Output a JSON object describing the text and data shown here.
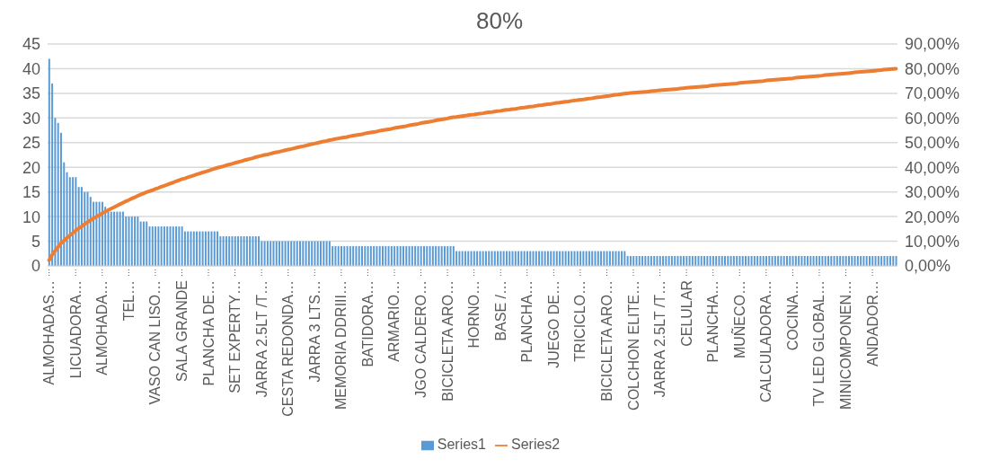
{
  "chart_data": {
    "type": "bar",
    "title": "80%",
    "categories": [
      "ALMOHADAS…",
      null,
      null,
      null,
      null,
      null,
      null,
      null,
      null,
      "LICUADORA…",
      null,
      null,
      null,
      null,
      null,
      null,
      null,
      null,
      "ALMOHADA…",
      null,
      null,
      null,
      null,
      null,
      null,
      null,
      null,
      "TEL…",
      null,
      null,
      null,
      null,
      null,
      null,
      null,
      null,
      "VASO CAN LISO…",
      null,
      null,
      null,
      null,
      null,
      null,
      null,
      null,
      "SALA GRANDE",
      null,
      null,
      null,
      null,
      null,
      null,
      null,
      null,
      "PLANCHA DE…",
      null,
      null,
      null,
      null,
      null,
      null,
      null,
      null,
      "SET EXPERTY…",
      null,
      null,
      null,
      null,
      null,
      null,
      null,
      null,
      "JARRA 2.5LT /T…",
      null,
      null,
      null,
      null,
      null,
      null,
      null,
      null,
      "CESTA REDONDA…",
      null,
      null,
      null,
      null,
      null,
      null,
      null,
      null,
      "JARRA 3 LTS…",
      null,
      null,
      null,
      null,
      null,
      null,
      null,
      null,
      "MEMORIA DDRIII…",
      null,
      null,
      null,
      null,
      null,
      null,
      null,
      null,
      "BATIDORA…",
      null,
      null,
      null,
      null,
      null,
      null,
      null,
      null,
      "ARMARIO…",
      null,
      null,
      null,
      null,
      null,
      null,
      null,
      null,
      "JGO CALDERO…",
      null,
      null,
      null,
      null,
      null,
      null,
      null,
      null,
      "BICICLETA ARO…",
      null,
      null,
      null,
      null,
      null,
      null,
      null,
      null,
      "HORNO…",
      null,
      null,
      null,
      null,
      null,
      null,
      null,
      null,
      "BASE /…",
      null,
      null,
      null,
      null,
      null,
      null,
      null,
      null,
      "PLANCHA…",
      null,
      null,
      null,
      null,
      null,
      null,
      null,
      null,
      "JUEGO DE…",
      null,
      null,
      null,
      null,
      null,
      null,
      null,
      null,
      "TRICICLO…",
      null,
      null,
      null,
      null,
      null,
      null,
      null,
      null,
      "BICICLETA ARO…",
      null,
      null,
      null,
      null,
      null,
      null,
      null,
      null,
      "COLCHON ELITE…",
      null,
      null,
      null,
      null,
      null,
      null,
      null,
      null,
      "JARRA 2.5LT /T…",
      null,
      null,
      null,
      null,
      null,
      null,
      null,
      null,
      "CELULAR",
      null,
      null,
      null,
      null,
      null,
      null,
      null,
      null,
      "PLANCHA…",
      null,
      null,
      null,
      null,
      null,
      null,
      null,
      null,
      "MUÑECO…",
      null,
      null,
      null,
      null,
      null,
      null,
      null,
      null,
      "CALCULADORA…",
      null,
      null,
      null,
      null,
      null,
      null,
      null,
      null,
      "COCINA…",
      null,
      null,
      null,
      null,
      null,
      null,
      null,
      null,
      "TV LED GLOBAL…",
      null,
      null,
      null,
      null,
      null,
      null,
      null,
      null,
      "MINICOMPONEN…",
      null,
      null,
      null,
      null,
      null,
      null,
      null,
      null,
      "ANDADOR…",
      null,
      null,
      null,
      null,
      null,
      null,
      null,
      null
    ],
    "series": [
      {
        "name": "Series1",
        "color": "#5b9bd5",
        "values": [
          42,
          37,
          30,
          29,
          27,
          21,
          19,
          18,
          18,
          18,
          16,
          16,
          15,
          15,
          14,
          13,
          13,
          13,
          13,
          12,
          11,
          11,
          11,
          11,
          11,
          11,
          10,
          10,
          10,
          10,
          10,
          9,
          9,
          9,
          8,
          8,
          8,
          8,
          8,
          8,
          8,
          8,
          8,
          8,
          8,
          8,
          7,
          7,
          7,
          7,
          7,
          7,
          7,
          7,
          7,
          7,
          7,
          7,
          6,
          6,
          6,
          6,
          6,
          6,
          6,
          6,
          6,
          6,
          6,
          6,
          6,
          6,
          5,
          5,
          5,
          5,
          5,
          5,
          5,
          5,
          5,
          5,
          5,
          5,
          5,
          5,
          5,
          5,
          5,
          5,
          5,
          5,
          5,
          5,
          5,
          5,
          4,
          4,
          4,
          4,
          4,
          4,
          4,
          4,
          4,
          4,
          4,
          4,
          4,
          4,
          4,
          4,
          4,
          4,
          4,
          4,
          4,
          4,
          4,
          4,
          4,
          4,
          4,
          4,
          4,
          4,
          4,
          4,
          4,
          4,
          4,
          4,
          4,
          4,
          4,
          4,
          4,
          4,
          3,
          3,
          3,
          3,
          3,
          3,
          3,
          3,
          3,
          3,
          3,
          3,
          3,
          3,
          3,
          3,
          3,
          3,
          3,
          3,
          3,
          3,
          3,
          3,
          3,
          3,
          3,
          3,
          3,
          3,
          3,
          3,
          3,
          3,
          3,
          3,
          3,
          3,
          3,
          3,
          3,
          3,
          3,
          3,
          3,
          3,
          3,
          3,
          3,
          3,
          3,
          3,
          3,
          3,
          3,
          3,
          3,
          3,
          2,
          2,
          2,
          2,
          2,
          2,
          2,
          2,
          2,
          2,
          2,
          2,
          2,
          2,
          2,
          2,
          2,
          2,
          2,
          2,
          2,
          2,
          2,
          2,
          2,
          2,
          2,
          2,
          2,
          2,
          2,
          2,
          2,
          2,
          2,
          2,
          2,
          2,
          2,
          2,
          2,
          2,
          2,
          2,
          2,
          2,
          2,
          2,
          2,
          2,
          2,
          2,
          2,
          2,
          2,
          2,
          2,
          2,
          2,
          2,
          2,
          2,
          2,
          2,
          2,
          2,
          2,
          2,
          2,
          2,
          2,
          2,
          2,
          2,
          2,
          2,
          2,
          2,
          2,
          2,
          2,
          2,
          2,
          2,
          2,
          2,
          2,
          2,
          2,
          2,
          2,
          2
        ]
      },
      {
        "name": "Series2",
        "type": "line",
        "axis": "y2",
        "color": "#ed7d31",
        "values": [
          2.3,
          4.4,
          6.0,
          7.6,
          9.1,
          10.2,
          11.3,
          12.3,
          13.3,
          14.3,
          15.2,
          16.0,
          16.9,
          17.7,
          18.5,
          19.2,
          19.9,
          20.6,
          21.3,
          22.0,
          22.6,
          23.2,
          23.8,
          24.4,
          25.0,
          25.6,
          26.2,
          26.7,
          27.3,
          27.8,
          28.4,
          28.9,
          29.4,
          29.9,
          30.3,
          30.7,
          31.2,
          31.6,
          32.1,
          32.5,
          32.9,
          33.4,
          33.8,
          34.3,
          34.7,
          35.2,
          35.5,
          35.9,
          36.3,
          36.7,
          37.1,
          37.5,
          37.9,
          38.2,
          38.6,
          39.0,
          39.4,
          39.8,
          40.1,
          40.4,
          40.8,
          41.1,
          41.4,
          41.8,
          42.1,
          42.4,
          42.8,
          43.1,
          43.4,
          43.7,
          44.1,
          44.4,
          44.7,
          45.0,
          45.2,
          45.5,
          45.8,
          46.1,
          46.3,
          46.6,
          46.9,
          47.2,
          47.4,
          47.7,
          48.0,
          48.3,
          48.5,
          48.8,
          49.1,
          49.4,
          49.6,
          49.9,
          50.2,
          50.5,
          50.7,
          51.0,
          51.2,
          51.5,
          51.7,
          51.9,
          52.1,
          52.3,
          52.6,
          52.8,
          53.0,
          53.2,
          53.4,
          53.7,
          53.9,
          54.1,
          54.3,
          54.5,
          54.8,
          55.0,
          55.2,
          55.4,
          55.6,
          55.9,
          56.1,
          56.3,
          56.5,
          56.7,
          57.0,
          57.2,
          57.4,
          57.6,
          57.9,
          58.1,
          58.3,
          58.5,
          58.7,
          59.0,
          59.2,
          59.4,
          59.6,
          59.8,
          60.1,
          60.3,
          60.4,
          60.6,
          60.8,
          60.9,
          61.1,
          61.3,
          61.4,
          61.6,
          61.8,
          61.9,
          62.1,
          62.3,
          62.4,
          62.6,
          62.8,
          62.9,
          63.1,
          63.3,
          63.4,
          63.6,
          63.7,
          63.9,
          64.1,
          64.2,
          64.4,
          64.6,
          64.7,
          64.9,
          65.1,
          65.2,
          65.4,
          65.6,
          65.7,
          65.9,
          66.1,
          66.2,
          66.4,
          66.6,
          66.7,
          66.9,
          67.1,
          67.2,
          67.4,
          67.5,
          67.7,
          67.9,
          68.0,
          68.2,
          68.4,
          68.5,
          68.7,
          68.9,
          69.0,
          69.2,
          69.4,
          69.5,
          69.7,
          69.9,
          70.0,
          70.1,
          70.2,
          70.3,
          70.4,
          70.5,
          70.6,
          70.7,
          70.9,
          71.0,
          71.1,
          71.2,
          71.3,
          71.4,
          71.5,
          71.6,
          71.7,
          71.8,
          72.0,
          72.1,
          72.2,
          72.3,
          72.4,
          72.5,
          72.6,
          72.7,
          72.8,
          72.9,
          73.1,
          73.2,
          73.3,
          73.4,
          73.5,
          73.6,
          73.7,
          73.8,
          73.9,
          74.0,
          74.2,
          74.3,
          74.4,
          74.5,
          74.6,
          74.7,
          74.8,
          74.9,
          75.0,
          75.2,
          75.3,
          75.4,
          75.5,
          75.6,
          75.7,
          75.8,
          75.9,
          76.0,
          76.1,
          76.3,
          76.4,
          76.5,
          76.6,
          76.7,
          76.8,
          76.9,
          77.0,
          77.1,
          77.2,
          77.4,
          77.5,
          77.6,
          77.7,
          77.8,
          77.9,
          78.0,
          78.1,
          78.2,
          78.3,
          78.5,
          78.6,
          78.7,
          78.8,
          78.9,
          79.0,
          79.1,
          79.2,
          79.3,
          79.4,
          79.6,
          79.7,
          79.8,
          79.9,
          80.0
        ]
      }
    ],
    "ylim": [
      0,
      45
    ],
    "yticks": [
      0,
      5,
      10,
      15,
      20,
      25,
      30,
      35,
      40,
      45
    ],
    "y2lim": [
      0,
      90
    ],
    "y2ticks": [
      {
        "value": 0,
        "label": "0,00%"
      },
      {
        "value": 10,
        "label": "10,00%"
      },
      {
        "value": 20,
        "label": "20,00%"
      },
      {
        "value": 30,
        "label": "30,00%"
      },
      {
        "value": 40,
        "label": "40,00%"
      },
      {
        "value": 50,
        "label": "50,00%"
      },
      {
        "value": 60,
        "label": "60,00%"
      },
      {
        "value": 70,
        "label": "70,00%"
      },
      {
        "value": 80,
        "label": "80,00%"
      },
      {
        "value": 90,
        "label": "90,00%"
      }
    ],
    "grid": "y",
    "legend": "bottom",
    "marker": "none",
    "line_style": "solid"
  }
}
